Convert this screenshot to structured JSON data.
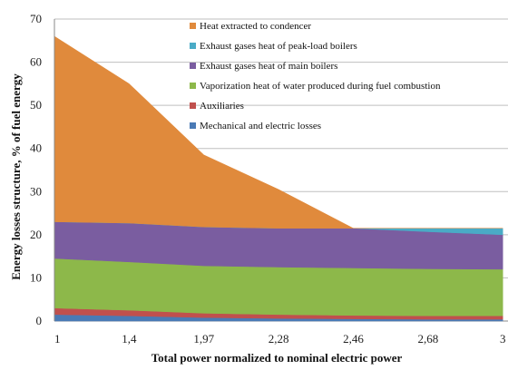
{
  "chart_data": {
    "type": "area",
    "stacked": true,
    "x_categories": [
      "1",
      "1,4",
      "1,97",
      "2,28",
      "2,46",
      "2,68",
      "3"
    ],
    "ylabel": "Energy losses structure, % of fuel energy",
    "xlabel": "Total power normalized to nominal electric power",
    "ylim": [
      0,
      70
    ],
    "y_ticks": [
      "0",
      "10",
      "20",
      "30",
      "40",
      "50",
      "60",
      "70"
    ],
    "grid": true,
    "legend_position": "top-center",
    "series": [
      {
        "name": "Mechanical and electric losses",
        "color": "#4a7ab5",
        "values": [
          1.5,
          1.2,
          0.8,
          0.6,
          0.5,
          0.4,
          0.4
        ]
      },
      {
        "name": "Auxiliaries",
        "color": "#c0504d",
        "values": [
          1.5,
          1.3,
          1.0,
          0.9,
          0.8,
          0.8,
          0.8
        ]
      },
      {
        "name": "Vaporization heat of water produced  during fuel combustion",
        "color": "#8db84a",
        "values": [
          11.5,
          11.2,
          11.0,
          11.0,
          11.0,
          10.9,
          10.8
        ]
      },
      {
        "name": "Exhaust gases heat of main boilers",
        "color": "#7a5da0",
        "values": [
          8.5,
          9.0,
          9.0,
          9.0,
          9.2,
          8.6,
          8.0
        ]
      },
      {
        "name": "Exhaust gases heat of peak-load boilers",
        "color": "#4aabc6",
        "values": [
          0,
          0,
          0,
          0,
          0,
          0.8,
          1.5
        ]
      },
      {
        "name": "Heat  extracted to condencer",
        "color": "#e08a3c",
        "values": [
          43.0,
          32.3,
          16.7,
          9.0,
          0,
          0,
          0
        ]
      }
    ]
  }
}
